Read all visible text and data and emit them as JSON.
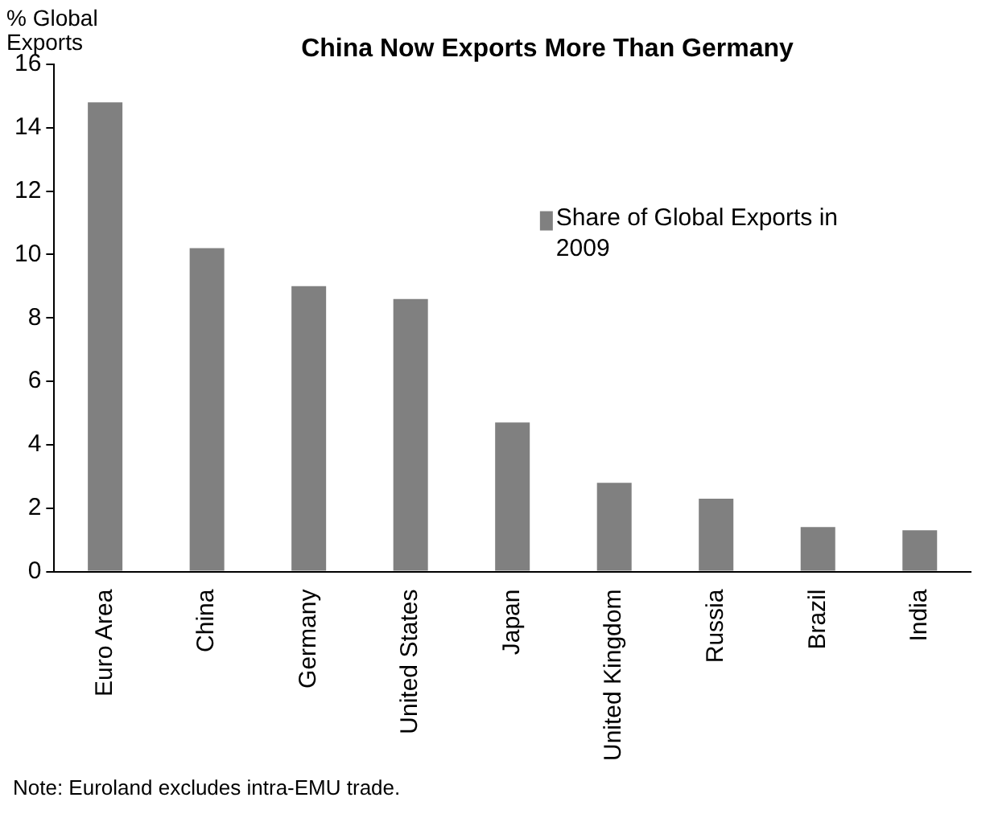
{
  "chart_data": {
    "type": "bar",
    "title": "China Now Exports More Than Germany",
    "ylabel": "% Global Exports",
    "categories": [
      "Euro Area",
      "China",
      "Germany",
      "United States",
      "Japan",
      "United Kingdom",
      "Russia",
      "Brazil",
      "India"
    ],
    "series": [
      {
        "name": "Share of Global Exports in 2009",
        "color": "#808080",
        "values": [
          14.8,
          10.2,
          9.0,
          8.6,
          4.7,
          2.8,
          2.3,
          1.4,
          1.3
        ]
      }
    ],
    "ylim": [
      0,
      16
    ],
    "yticks": [
      0,
      2,
      4,
      6,
      8,
      10,
      12,
      14,
      16
    ],
    "grid": false,
    "legend": "top right",
    "annotations": [
      "Note: Euroland excludes intra-EMU trade."
    ]
  }
}
